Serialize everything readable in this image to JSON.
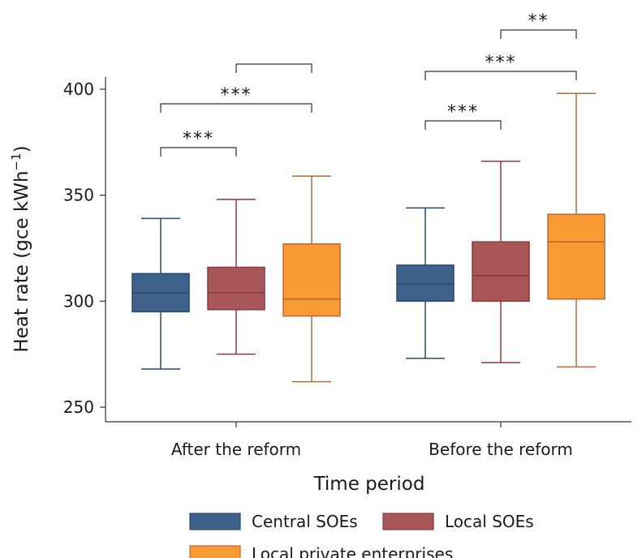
{
  "chart_data": {
    "type": "box",
    "title": "",
    "xlabel": "Time period",
    "ylabel": "Heat rate (gce kWh",
    "ylabel_sup": "−1",
    "ylabel_close": ")",
    "ylim": [
      245,
      405
    ],
    "yticks": [
      250,
      300,
      350,
      400
    ],
    "categories": [
      "After the reform",
      "Before the reform"
    ],
    "series": [
      {
        "name": "Central SOEs",
        "color": "#3d6189",
        "stroke": "#2b4a6e",
        "boxes": [
          {
            "whisker_low": 268,
            "q1": 295,
            "median": 304,
            "q3": 313,
            "whisker_high": 339
          },
          {
            "whisker_low": 273,
            "q1": 300,
            "median": 308,
            "q3": 317,
            "whisker_high": 344
          }
        ]
      },
      {
        "name": "Local SOEs",
        "color": "#a85759",
        "stroke": "#8c3a3d",
        "boxes": [
          {
            "whisker_low": 275,
            "q1": 296,
            "median": 304,
            "q3": 316,
            "whisker_high": 348
          },
          {
            "whisker_low": 271,
            "q1": 300,
            "median": 312,
            "q3": 328,
            "whisker_high": 366
          }
        ]
      },
      {
        "name": "Local private enterprises",
        "color": "#f99b32",
        "stroke": "#b8683a",
        "boxes": [
          {
            "whisker_low": 262,
            "q1": 293,
            "median": 301,
            "q3": 327,
            "whisker_high": 359
          },
          {
            "whisker_low": 269,
            "q1": 301,
            "median": 328,
            "q3": 341,
            "whisker_high": 398
          }
        ]
      }
    ],
    "significance": [
      {
        "category": 0,
        "from": 0,
        "to": 1,
        "label": "***",
        "level": 0
      },
      {
        "category": 0,
        "from": 0,
        "to": 2,
        "label": "***",
        "level": 1
      },
      {
        "category": 0,
        "from": 1,
        "to": 2,
        "label": "",
        "level": 2
      },
      {
        "category": 1,
        "from": 0,
        "to": 1,
        "label": "***",
        "level": 0
      },
      {
        "category": 1,
        "from": 0,
        "to": 2,
        "label": "***",
        "level": 1
      },
      {
        "category": 1,
        "from": 1,
        "to": 2,
        "label": "**",
        "level": 2
      }
    ],
    "legend_position": "bottom"
  }
}
